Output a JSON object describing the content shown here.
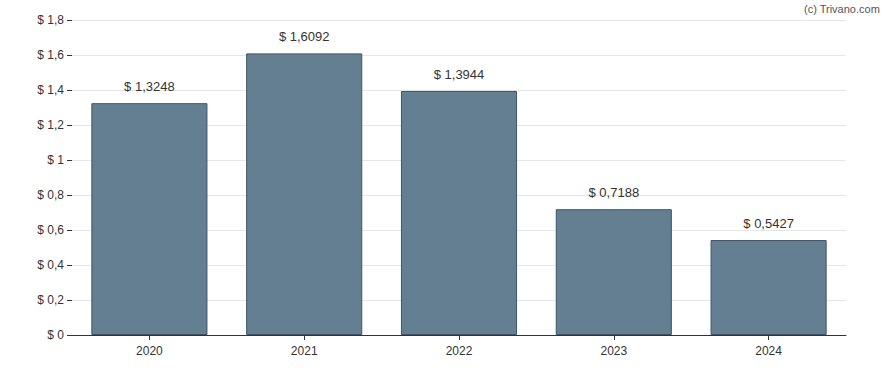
{
  "chart_data": {
    "type": "bar",
    "annotations": [
      "(c) Trivano.com"
    ],
    "categories": [
      "2020",
      "2021",
      "2022",
      "2023",
      "2024"
    ],
    "values": [
      1.3248,
      1.6092,
      1.3944,
      0.7188,
      0.5427
    ],
    "value_labels": [
      "$ 1,3248",
      "$ 1,6092",
      "$ 1,3944",
      "$ 0,7188",
      "$ 0,5427"
    ],
    "data_labels": true,
    "color": "#647f91",
    "ylim": [
      0,
      1.8
    ],
    "yticks": [
      {
        "value": 0,
        "label": "$ 0"
      },
      {
        "value": 0.2,
        "label": "$ 0,2"
      },
      {
        "value": 0.4,
        "label": "$ 0,4"
      },
      {
        "value": 0.6,
        "label": "$ 0,6"
      },
      {
        "value": 0.8,
        "label": "$ 0,8"
      },
      {
        "value": 1,
        "label": "$ 1"
      },
      {
        "value": 1.2,
        "label": "$ 1,2"
      },
      {
        "value": 1.4,
        "label": "$ 1,4"
      },
      {
        "value": 1.6,
        "label": "$ 1,6"
      },
      {
        "value": 1.8,
        "label": "$ 1,8"
      }
    ],
    "grid": true
  }
}
